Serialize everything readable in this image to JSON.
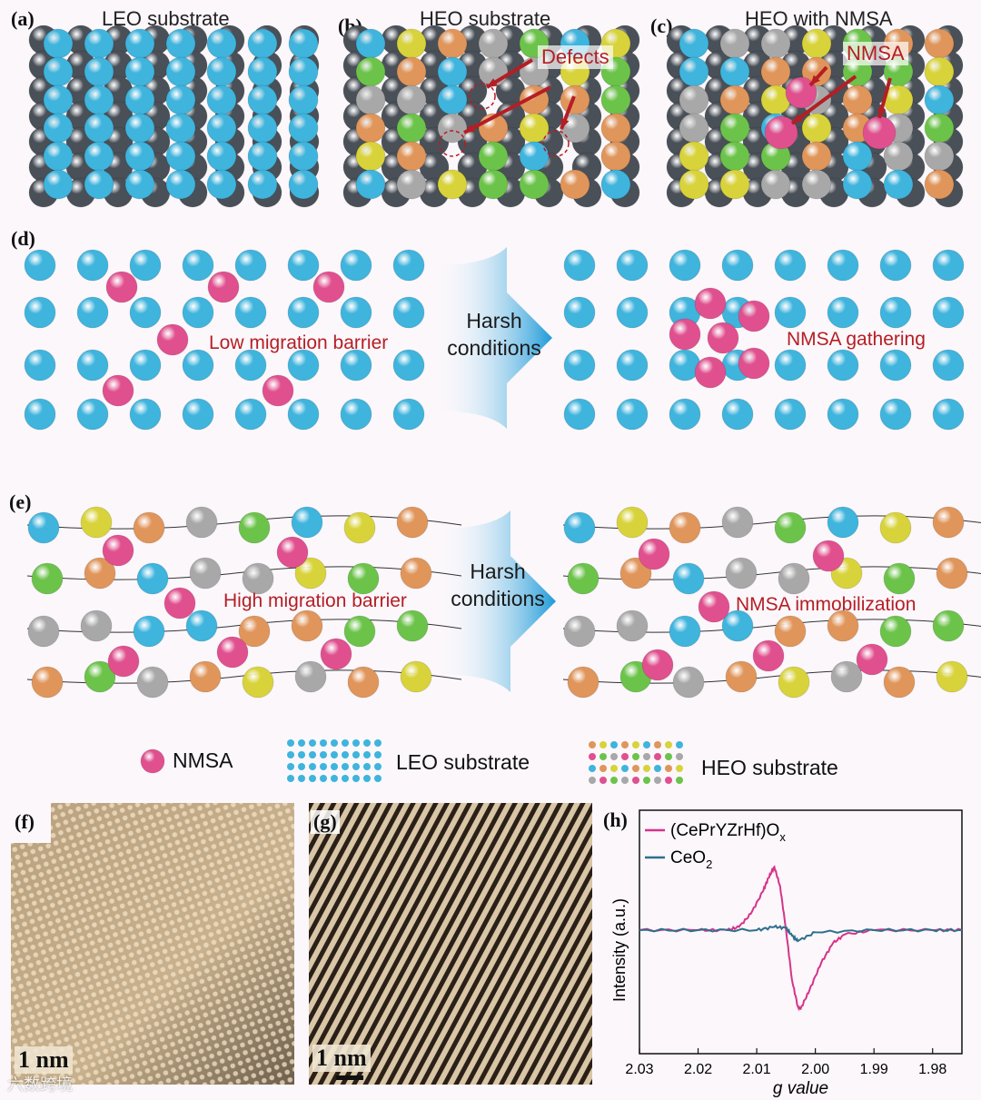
{
  "panels": {
    "a": {
      "label": "(a)",
      "title": "LEO substrate"
    },
    "b": {
      "label": "(b)",
      "title": "HEO substrate",
      "annotation": "Defects"
    },
    "c": {
      "label": "(c)",
      "title": "HEO with NMSA",
      "annotation": "NMSA"
    },
    "d": {
      "label": "(d)",
      "left_text": "Low migration barrier",
      "arrow_line1": "Harsh",
      "arrow_line2": "conditions",
      "right_text": "NMSA gathering"
    },
    "e": {
      "label": "(e)",
      "left_text": "High migration barrier",
      "arrow_line1": "Harsh",
      "arrow_line2": "conditions",
      "right_text": "NMSA immobilization"
    },
    "f": {
      "label": "(f)",
      "scale": "1 nm"
    },
    "g": {
      "label": "(g)",
      "scale": "1 nm"
    },
    "h": {
      "label": "(h)"
    }
  },
  "legend": {
    "nmsa": "NMSA",
    "leo": "LEO substrate",
    "heo": "HEO substrate"
  },
  "watermark": "六数跨境",
  "colors": {
    "cyan": "#3fb4dd",
    "pink": "#e0508e",
    "orange": "#e0955a",
    "green": "#6cc34a",
    "yellow": "#d8d33a",
    "gray": "#a8a8a8",
    "dark": "#4a5058",
    "series1": "#d6338a",
    "series2": "#2e6f8c"
  },
  "chart_data": {
    "type": "line",
    "title": "",
    "xlabel": "g value",
    "ylabel": "Intensity (a.u.)",
    "xlim": [
      2.03,
      1.975
    ],
    "x_reversed": true,
    "xticks": [
      "2.03",
      "2.02",
      "2.01",
      "2.00",
      "1.99",
      "1.98"
    ],
    "series": [
      {
        "name": "(CePrYZrHf)Ox",
        "name_main": "(CePrYZrHf)O",
        "name_sub": "x",
        "color": "#d6338a",
        "x": [
          2.03,
          2.02,
          2.015,
          2.013,
          2.011,
          2.009,
          2.008,
          2.007,
          2.006,
          2.005,
          2.004,
          2.003,
          2.0025,
          2.001,
          1.999,
          1.997,
          1.995,
          1.99,
          1.98,
          1.975
        ],
        "y": [
          0,
          0,
          0,
          0.03,
          0.15,
          0.35,
          0.48,
          0.58,
          0.4,
          0.0,
          -0.45,
          -0.7,
          -0.72,
          -0.55,
          -0.3,
          -0.12,
          -0.04,
          0,
          0,
          0
        ]
      },
      {
        "name": "CeO2",
        "name_main": "CeO",
        "name_sub": "2",
        "color": "#2e6f8c",
        "x": [
          2.03,
          2.02,
          2.01,
          2.007,
          2.005,
          2.004,
          2.003,
          2.0,
          1.99,
          1.98,
          1.975
        ],
        "y": [
          0,
          0,
          0,
          0.03,
          0.02,
          -0.05,
          -0.1,
          -0.02,
          0,
          0,
          0
        ]
      }
    ]
  }
}
